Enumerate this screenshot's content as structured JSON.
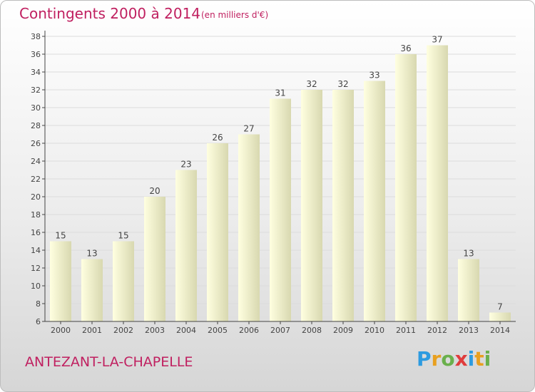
{
  "header": {
    "title": "Contingents 2000 à 2014",
    "unit": "(en milliers d'€)"
  },
  "footer": {
    "location": "ANTEZANT-LA-CHAPELLE",
    "brand": {
      "letters": [
        "P",
        "r",
        "o",
        "x",
        "i",
        "t",
        "i"
      ],
      "colors": [
        "#2d9be0",
        "#e8a020",
        "#6ab04c",
        "#e03c3c",
        "#2d9be0",
        "#e8a020",
        "#6ab04c"
      ]
    }
  },
  "colors": {
    "bar_top": "#ffffe0",
    "bar_bottom": "#d8d8b0",
    "axis": "#444444",
    "grid": "#dcdcdc",
    "label": "#444444"
  },
  "chart_data": {
    "type": "bar",
    "categories": [
      "2000",
      "2001",
      "2002",
      "2003",
      "2004",
      "2005",
      "2006",
      "2007",
      "2008",
      "2009",
      "2010",
      "2011",
      "2012",
      "2013",
      "2014"
    ],
    "values": [
      15,
      13,
      15,
      20,
      23,
      26,
      27,
      31,
      32,
      32,
      33,
      36,
      37,
      13,
      7
    ],
    "value_labels": [
      "15",
      "13",
      "15",
      "20",
      "23",
      "26",
      "27",
      "31",
      "32",
      "32",
      "33",
      "36",
      "37",
      "13",
      "7"
    ],
    "yticks": [
      "6",
      "8",
      "10",
      "12",
      "14",
      "16",
      "18",
      "20",
      "22",
      "24",
      "26",
      "28",
      "30",
      "32",
      "34",
      "36",
      "38"
    ],
    "ylim": [
      6,
      38
    ],
    "grid": true,
    "legend": "none"
  }
}
